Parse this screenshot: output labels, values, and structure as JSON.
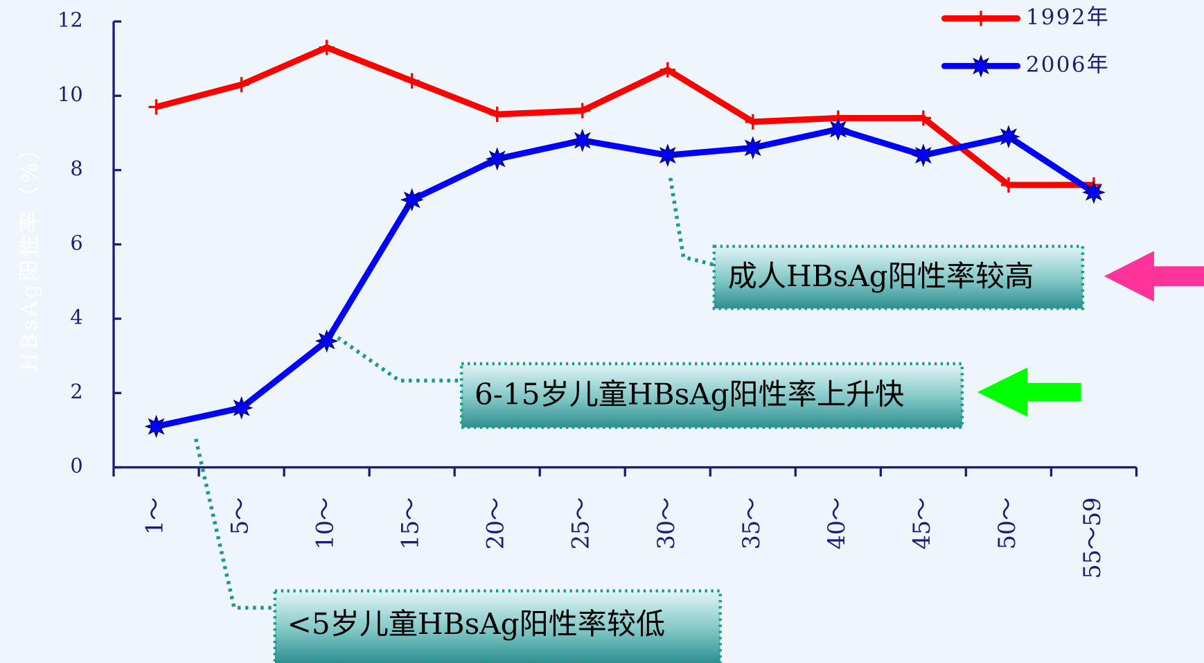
{
  "chart_data": {
    "type": "line",
    "y_label": "HBsAg阳性率（%）",
    "categories": [
      "1～",
      "5～",
      "10～",
      "15～",
      "20～",
      "25～",
      "30～",
      "35～",
      "40～",
      "45～",
      "50～",
      "55～59"
    ],
    "series": [
      {
        "name": "1992年",
        "color": "#ff0000",
        "marker": "plus",
        "values": [
          9.7,
          10.3,
          11.3,
          10.4,
          9.5,
          9.6,
          10.7,
          9.3,
          9.4,
          9.4,
          7.6,
          7.6
        ]
      },
      {
        "name": "2006年",
        "color": "#0000ff",
        "marker": "star",
        "values": [
          1.1,
          1.6,
          3.4,
          7.2,
          8.3,
          8.8,
          8.4,
          8.6,
          9.1,
          8.4,
          8.9,
          7.4
        ]
      }
    ],
    "ylim": [
      0,
      12
    ],
    "yticks": [
      0,
      2,
      4,
      6,
      8,
      10,
      12
    ],
    "legend": "upper right",
    "annotations": [
      {
        "text": "成人HBsAg阳性率较高"
      },
      {
        "text": "6-15岁儿童HBsAg阳性率上升快"
      },
      {
        "text": "<5岁儿童HBsAg阳性率较低"
      }
    ]
  }
}
